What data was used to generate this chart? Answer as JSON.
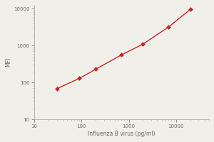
{
  "x": [
    30,
    90,
    200,
    700,
    2000,
    7000,
    20000
  ],
  "y": [
    68,
    130,
    230,
    560,
    1100,
    3200,
    9500
  ],
  "line_color": "#cc2222",
  "marker": "D",
  "marker_color": "#cc2222",
  "marker_size": 3,
  "line_width": 1.0,
  "xlabel": "Influenza B virus (pg/ml)",
  "ylabel": "MFI",
  "xlim_log": [
    1.4,
    4.7
  ],
  "ylim_log": [
    1.0,
    4.1
  ],
  "background_color": "#f0efea",
  "xlabel_fontsize": 5.5,
  "ylabel_fontsize": 5.5,
  "tick_fontsize": 5.0,
  "xticks": [
    10,
    100,
    1000,
    10000
  ],
  "yticks": [
    10,
    100,
    1000,
    10000
  ]
}
